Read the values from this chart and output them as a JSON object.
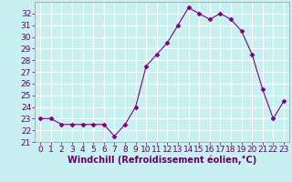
{
  "x": [
    0,
    1,
    2,
    3,
    4,
    5,
    6,
    7,
    8,
    9,
    10,
    11,
    12,
    13,
    14,
    15,
    16,
    17,
    18,
    19,
    20,
    21,
    22,
    23
  ],
  "y": [
    23,
    23,
    22.5,
    22.5,
    22.5,
    22.5,
    22.5,
    21.5,
    22.5,
    24,
    27.5,
    28.5,
    29.5,
    31,
    32.5,
    32,
    31.5,
    32,
    31.5,
    30.5,
    28.5,
    25.5,
    23,
    24.5
  ],
  "line_color": "#800080",
  "marker": "D",
  "marker_size": 2.5,
  "bg_color": "#c8f0f0",
  "grid_color": "#ffffff",
  "xlabel": "Windchill (Refroidissement éolien,°C)",
  "xlabel_fontsize": 7,
  "tick_fontsize": 6.5,
  "ylim": [
    21,
    33
  ],
  "yticks": [
    21,
    22,
    23,
    24,
    25,
    26,
    27,
    28,
    29,
    30,
    31,
    32
  ],
  "xlim": [
    -0.5,
    23.5
  ],
  "xticks": [
    0,
    1,
    2,
    3,
    4,
    5,
    6,
    7,
    8,
    9,
    10,
    11,
    12,
    13,
    14,
    15,
    16,
    17,
    18,
    19,
    20,
    21,
    22,
    23
  ]
}
